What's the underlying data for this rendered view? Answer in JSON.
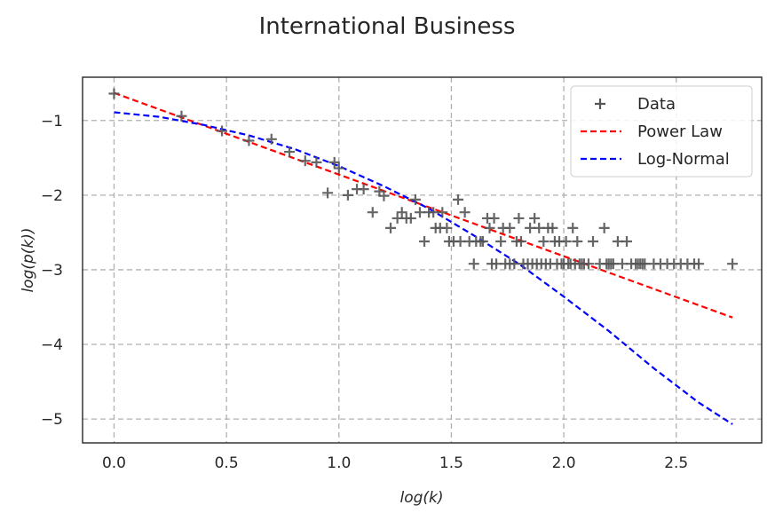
{
  "chart_data": {
    "type": "scatter",
    "title": "International Business",
    "xlabel": "log(k)",
    "ylabel": "log(p(k))",
    "xlim": [
      -0.14,
      2.88
    ],
    "ylim": [
      -5.32,
      -0.42
    ],
    "xticks": [
      0.0,
      0.5,
      1.0,
      1.5,
      2.0,
      2.5
    ],
    "xtick_labels": [
      "0.0",
      "0.5",
      "1.0",
      "1.5",
      "2.0",
      "2.5"
    ],
    "yticks": [
      -1,
      -2,
      -3,
      -4,
      -5
    ],
    "ytick_labels": [
      "−1",
      "−2",
      "−3",
      "−4",
      "−5"
    ],
    "grid": true,
    "legend_position": "top-right",
    "series": [
      {
        "name": "Data",
        "kind": "scatter",
        "marker": "+",
        "color": "#555555",
        "points": [
          [
            0.0,
            -0.64
          ],
          [
            0.3,
            -0.94
          ],
          [
            0.48,
            -1.14
          ],
          [
            0.6,
            -1.27
          ],
          [
            0.7,
            -1.25
          ],
          [
            0.78,
            -1.42
          ],
          [
            0.85,
            -1.54
          ],
          [
            0.9,
            -1.56
          ],
          [
            0.95,
            -1.97
          ],
          [
            0.98,
            -1.56
          ],
          [
            1.0,
            -1.64
          ],
          [
            1.04,
            -2.0
          ],
          [
            1.08,
            -1.92
          ],
          [
            1.11,
            -1.92
          ],
          [
            1.15,
            -2.23
          ],
          [
            1.18,
            -1.95
          ],
          [
            1.2,
            -2.01
          ],
          [
            1.23,
            -2.44
          ],
          [
            1.26,
            -2.31
          ],
          [
            1.28,
            -2.23
          ],
          [
            1.3,
            -2.31
          ],
          [
            1.32,
            -2.31
          ],
          [
            1.34,
            -2.06
          ],
          [
            1.36,
            -2.23
          ],
          [
            1.38,
            -2.62
          ],
          [
            1.4,
            -2.23
          ],
          [
            1.42,
            -2.23
          ],
          [
            1.43,
            -2.44
          ],
          [
            1.45,
            -2.44
          ],
          [
            1.46,
            -2.23
          ],
          [
            1.48,
            -2.44
          ],
          [
            1.49,
            -2.62
          ],
          [
            1.51,
            -2.62
          ],
          [
            1.53,
            -2.06
          ],
          [
            1.54,
            -2.62
          ],
          [
            1.56,
            -2.23
          ],
          [
            1.58,
            -2.62
          ],
          [
            1.6,
            -2.92
          ],
          [
            1.61,
            -2.62
          ],
          [
            1.63,
            -2.62
          ],
          [
            1.64,
            -2.62
          ],
          [
            1.66,
            -2.31
          ],
          [
            1.67,
            -2.44
          ],
          [
            1.68,
            -2.92
          ],
          [
            1.69,
            -2.31
          ],
          [
            1.7,
            -2.92
          ],
          [
            1.72,
            -2.62
          ],
          [
            1.73,
            -2.44
          ],
          [
            1.74,
            -2.92
          ],
          [
            1.76,
            -2.44
          ],
          [
            1.76,
            -2.92
          ],
          [
            1.78,
            -2.92
          ],
          [
            1.79,
            -2.62
          ],
          [
            1.8,
            -2.31
          ],
          [
            1.81,
            -2.62
          ],
          [
            1.82,
            -2.92
          ],
          [
            1.84,
            -2.92
          ],
          [
            1.85,
            -2.44
          ],
          [
            1.86,
            -2.92
          ],
          [
            1.87,
            -2.31
          ],
          [
            1.88,
            -2.92
          ],
          [
            1.89,
            -2.44
          ],
          [
            1.9,
            -2.92
          ],
          [
            1.91,
            -2.62
          ],
          [
            1.92,
            -2.92
          ],
          [
            1.93,
            -2.44
          ],
          [
            1.94,
            -2.92
          ],
          [
            1.95,
            -2.44
          ],
          [
            1.96,
            -2.62
          ],
          [
            1.97,
            -2.92
          ],
          [
            1.98,
            -2.62
          ],
          [
            1.99,
            -2.92
          ],
          [
            2.0,
            -2.92
          ],
          [
            2.01,
            -2.62
          ],
          [
            2.02,
            -2.92
          ],
          [
            2.03,
            -2.92
          ],
          [
            2.04,
            -2.44
          ],
          [
            2.05,
            -2.92
          ],
          [
            2.06,
            -2.62
          ],
          [
            2.07,
            -2.92
          ],
          [
            2.08,
            -2.92
          ],
          [
            2.09,
            -2.92
          ],
          [
            2.11,
            -2.92
          ],
          [
            2.13,
            -2.62
          ],
          [
            2.16,
            -2.92
          ],
          [
            2.18,
            -2.44
          ],
          [
            2.19,
            -2.92
          ],
          [
            2.2,
            -2.92
          ],
          [
            2.21,
            -2.92
          ],
          [
            2.22,
            -2.92
          ],
          [
            2.24,
            -2.62
          ],
          [
            2.26,
            -2.92
          ],
          [
            2.28,
            -2.62
          ],
          [
            2.3,
            -2.92
          ],
          [
            2.32,
            -2.92
          ],
          [
            2.33,
            -2.92
          ],
          [
            2.34,
            -2.92
          ],
          [
            2.35,
            -2.92
          ],
          [
            2.36,
            -2.92
          ],
          [
            2.4,
            -2.92
          ],
          [
            2.43,
            -2.92
          ],
          [
            2.46,
            -2.92
          ],
          [
            2.49,
            -2.92
          ],
          [
            2.52,
            -2.92
          ],
          [
            2.55,
            -2.92
          ],
          [
            2.58,
            -2.92
          ],
          [
            2.6,
            -2.92
          ],
          [
            2.75,
            -2.92
          ]
        ]
      },
      {
        "name": "Power Law",
        "kind": "line",
        "style": "dashed",
        "color": "#ff0000",
        "points": [
          [
            0.0,
            -0.63
          ],
          [
            2.75,
            -3.64
          ]
        ]
      },
      {
        "name": "Log-Normal",
        "kind": "line",
        "style": "dashed",
        "color": "#0000ff",
        "points": [
          [
            0.0,
            -0.89
          ],
          [
            0.2,
            -0.95
          ],
          [
            0.4,
            -1.06
          ],
          [
            0.6,
            -1.2
          ],
          [
            0.8,
            -1.38
          ],
          [
            1.0,
            -1.61
          ],
          [
            1.2,
            -1.88
          ],
          [
            1.4,
            -2.18
          ],
          [
            1.6,
            -2.54
          ],
          [
            1.8,
            -2.92
          ],
          [
            2.0,
            -3.36
          ],
          [
            2.2,
            -3.82
          ],
          [
            2.4,
            -4.32
          ],
          [
            2.6,
            -4.78
          ],
          [
            2.75,
            -5.07
          ]
        ]
      }
    ]
  }
}
